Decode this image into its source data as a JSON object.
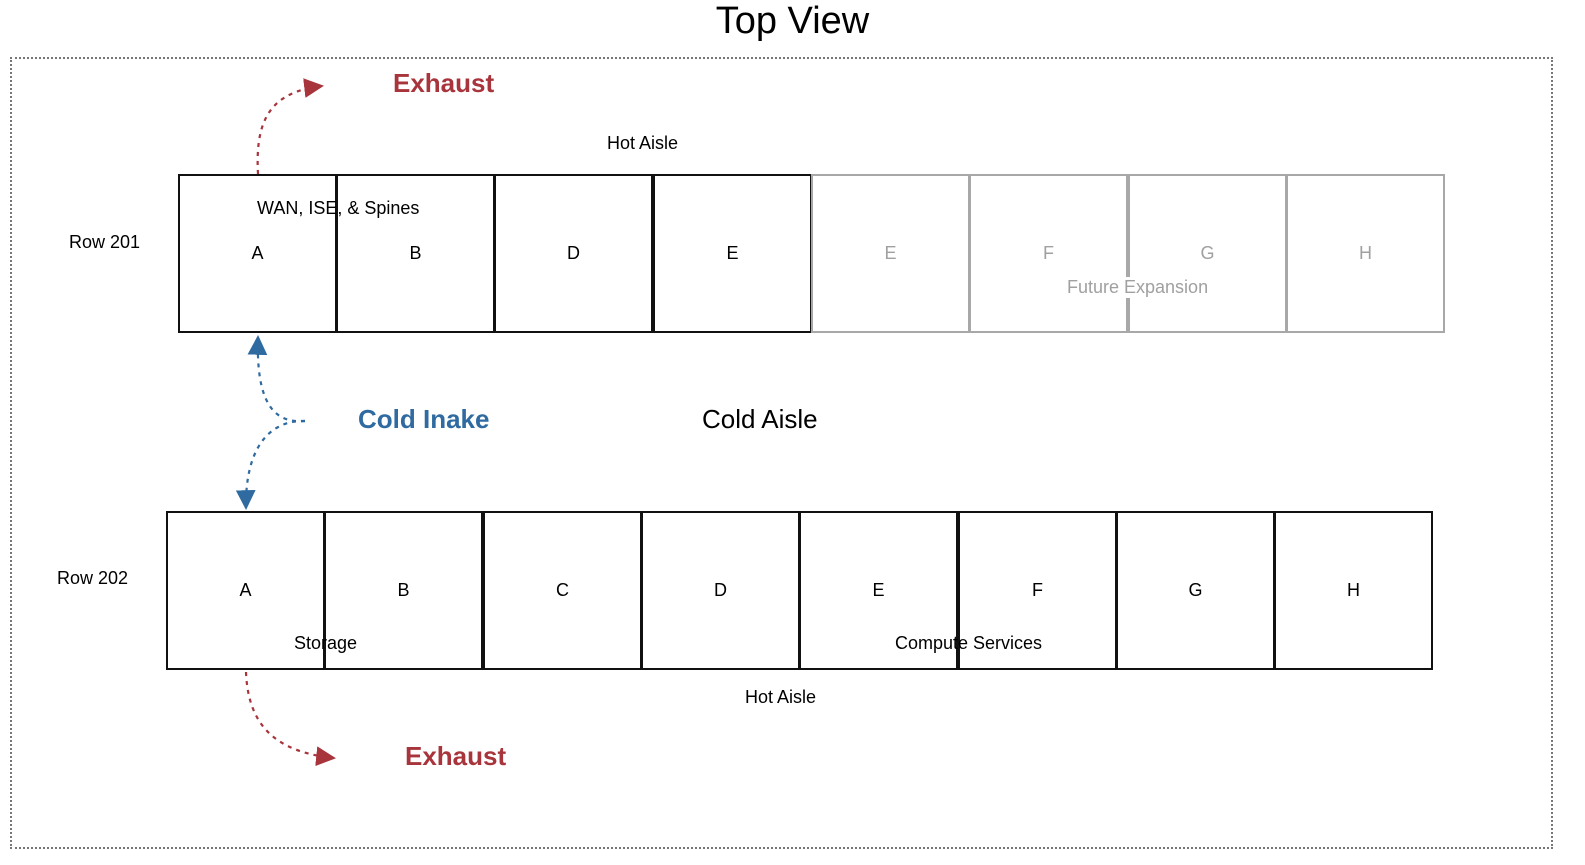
{
  "title": "Top View",
  "row_201": {
    "label": "Row 201",
    "racks": [
      {
        "label": "A",
        "status": "active"
      },
      {
        "label": "B",
        "status": "active"
      },
      {
        "label": "D",
        "status": "active"
      },
      {
        "label": "E",
        "status": "active"
      },
      {
        "label": "E",
        "status": "future"
      },
      {
        "label": "F",
        "status": "future"
      },
      {
        "label": "G",
        "status": "future"
      },
      {
        "label": "H",
        "status": "future"
      }
    ],
    "group_labels": [
      "WAN, ISE, & Spines",
      "Future Expansion"
    ]
  },
  "row_202": {
    "label": "Row 202",
    "racks": [
      {
        "label": "A",
        "status": "active"
      },
      {
        "label": "B",
        "status": "active"
      },
      {
        "label": "C",
        "status": "active"
      },
      {
        "label": "D",
        "status": "active"
      },
      {
        "label": "E",
        "status": "active"
      },
      {
        "label": "F",
        "status": "active"
      },
      {
        "label": "G",
        "status": "active"
      },
      {
        "label": "H",
        "status": "active"
      }
    ],
    "group_labels": [
      "Storage",
      "Compute Services"
    ]
  },
  "aisles": {
    "hot_top": "Hot Aisle",
    "cold": "Cold Aisle",
    "hot_bottom": "Hot Aisle"
  },
  "flows": {
    "exhaust_top": "Exhaust",
    "cold_intake": "Cold Inake",
    "exhaust_bottom": "Exhaust"
  },
  "colors": {
    "exhaust": "#a8343c",
    "cold": "#2f6aa0",
    "future": "#a8a8a8",
    "active": "#111111"
  }
}
